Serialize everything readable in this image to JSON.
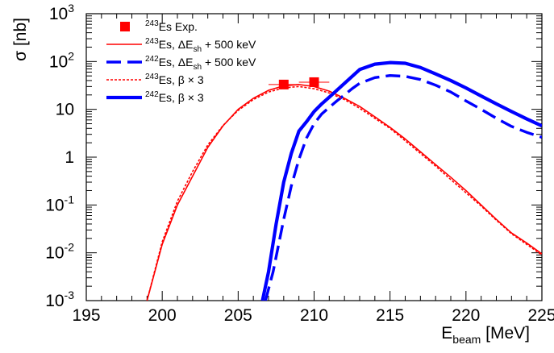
{
  "chart_data": {
    "type": "line",
    "xlabel": "E",
    "xlabel_sub": "beam",
    "xlabel_unit": " [MeV]",
    "ylabel": "σ [nb]",
    "xlim": [
      195,
      225
    ],
    "ylim": [
      0.001,
      1000
    ],
    "yscale": "log",
    "x_ticks": [
      "195",
      "200",
      "205",
      "210",
      "215",
      "220",
      "225"
    ],
    "y_ticks": [
      {
        "base": "10",
        "exp": "-3"
      },
      {
        "base": "10",
        "exp": "-2"
      },
      {
        "base": "10",
        "exp": "-1"
      },
      {
        "base": "1",
        "exp": ""
      },
      {
        "base": "10",
        "exp": ""
      },
      {
        "base": "10",
        "exp": "2"
      },
      {
        "base": "10",
        "exp": "3"
      }
    ],
    "legend_position": "top-left",
    "colors": {
      "red": "#ff0000",
      "blue": "#0000ff"
    },
    "series": [
      {
        "name": "Es Exp.",
        "legend": {
          "sup": "243",
          "text": "Es Exp."
        },
        "style": "marker",
        "color": "#ff0000",
        "points": [
          {
            "x": 208,
            "y": 33,
            "xerr": 1,
            "yerr_low": 5,
            "yerr_high": 5
          },
          {
            "x": 210,
            "y": 37,
            "xerr": 1,
            "yerr_low": 5,
            "yerr_high": 5
          }
        ]
      },
      {
        "name": "Es, ΔE_sh + 500 keV",
        "legend": {
          "sup": "243",
          "pre": "Es, ΔE",
          "sub": "sh",
          "post": " + 500 keV"
        },
        "style": "solid-thin",
        "color": "#ff0000",
        "x": [
          199,
          200,
          201,
          202,
          203,
          204,
          205,
          206,
          207,
          208,
          209,
          210,
          211,
          212,
          213,
          214,
          215,
          216,
          217,
          218,
          219,
          220,
          221,
          222,
          223,
          224,
          225
        ],
        "y": [
          0.001,
          0.015,
          0.1,
          0.4,
          1.6,
          4.5,
          10,
          17,
          25,
          31,
          33,
          30,
          24,
          17,
          11.5,
          7,
          4.2,
          2.4,
          1.3,
          0.7,
          0.38,
          0.2,
          0.1,
          0.05,
          0.026,
          0.016,
          0.0095
        ]
      },
      {
        "name": "Es, ΔE_sh + 500 keV",
        "legend": {
          "sup": "242",
          "pre": "Es, ΔE",
          "sub": "sh",
          "post": " + 500 keV"
        },
        "style": "dashed-thick",
        "color": "#0000ff",
        "x": [
          206.8,
          207.3,
          208,
          208.5,
          209,
          209.5,
          210,
          210.5,
          211,
          211.5,
          212,
          212.5,
          213,
          214,
          215,
          216,
          217,
          218,
          219,
          220,
          221,
          222,
          223,
          224,
          225
        ],
        "y": [
          0.001,
          0.004,
          0.05,
          0.25,
          0.9,
          2.5,
          5,
          8,
          11,
          15,
          20,
          27,
          35,
          46,
          51,
          49,
          42,
          32,
          23,
          15,
          10,
          6.5,
          4.4,
          3.3,
          2.6
        ]
      },
      {
        "name": "Es, β × 3",
        "legend": {
          "sup": "243",
          "pre": "Es, β × 3"
        },
        "style": "dotted",
        "color": "#ff0000",
        "x": [
          199,
          200,
          201,
          202,
          203,
          204,
          205,
          206,
          207,
          208,
          209,
          210,
          211,
          212,
          213,
          214,
          215,
          216,
          217,
          218,
          219,
          220,
          221,
          222,
          223,
          224,
          225
        ],
        "y": [
          0.001,
          0.017,
          0.12,
          0.5,
          1.8,
          4.6,
          9.5,
          16,
          23,
          28,
          30,
          27,
          22,
          16,
          10.5,
          6.5,
          4,
          2.2,
          1.2,
          0.65,
          0.34,
          0.18,
          0.095,
          0.048,
          0.025,
          0.015,
          0.009
        ]
      },
      {
        "name": "Es, β × 3",
        "legend": {
          "sup": "242",
          "pre": "Es, β × 3"
        },
        "style": "solid-thick",
        "color": "#0000ff",
        "x": [
          206.6,
          207,
          207.5,
          208,
          208.5,
          209,
          209.5,
          210,
          210.5,
          211,
          212,
          213,
          214,
          215,
          216,
          217,
          218,
          219,
          220,
          221,
          222,
          223,
          224,
          225
        ],
        "y": [
          0.001,
          0.004,
          0.04,
          0.3,
          1.2,
          3.5,
          5.5,
          9,
          13,
          18,
          35,
          68,
          88,
          95,
          92,
          75,
          55,
          40,
          28,
          19,
          13,
          9,
          6.3,
          4.5
        ]
      }
    ]
  }
}
